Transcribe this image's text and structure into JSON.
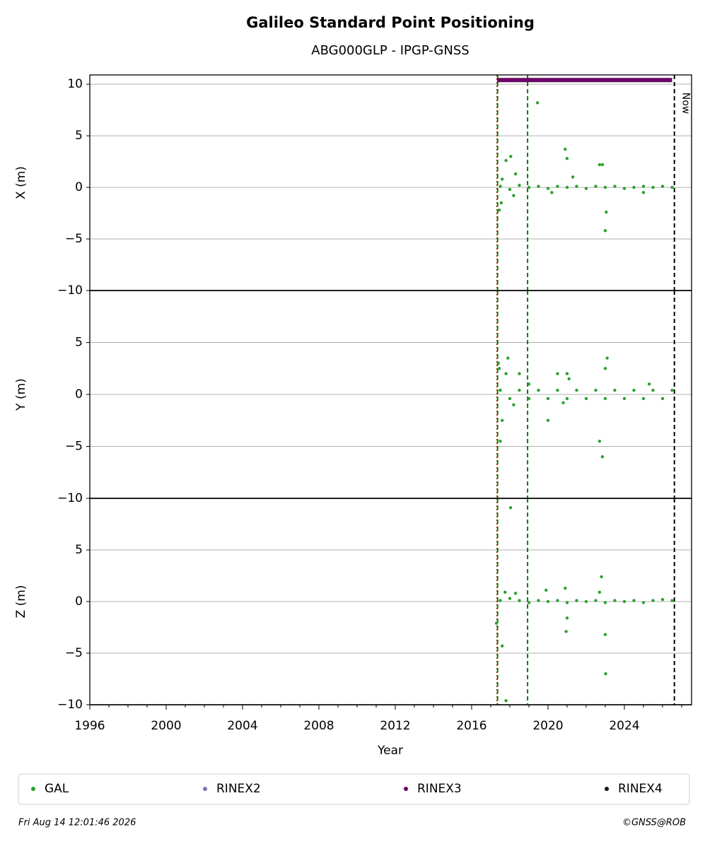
{
  "title": "Galileo Standard Point Positioning",
  "subtitle": "ABG000GLP - IPGP-GNSS",
  "x_axis": {
    "label": "Year",
    "xlim": [
      1996,
      2027.52
    ],
    "xticks": [
      1996,
      2000,
      2004,
      2008,
      2012,
      2016,
      2020,
      2024
    ],
    "minor_ticks": [
      1997,
      1998,
      1999,
      2001,
      2002,
      2003,
      2005,
      2006,
      2007,
      2009,
      2010,
      2011,
      2013,
      2014,
      2015,
      2017,
      2018,
      2019,
      2021,
      2022,
      2023,
      2025,
      2026,
      2027
    ]
  },
  "vlines": [
    {
      "x": 2017.33,
      "color": "#d62728",
      "style": "dotted"
    },
    {
      "x": 2017.36,
      "color": "#008000",
      "style": "dashed"
    },
    {
      "x": 2018.93,
      "color": "#008000",
      "style": "dashed"
    },
    {
      "x": 2026.62,
      "color": "#000000",
      "style": "dashed",
      "label": "Now"
    }
  ],
  "legend": [
    {
      "name": "GAL",
      "color": "#2ca02c"
    },
    {
      "name": "RINEX2",
      "color": "#8172b3"
    },
    {
      "name": "RINEX3",
      "color": "#6a0066"
    },
    {
      "name": "RINEX4",
      "color": "#1a0a1a"
    }
  ],
  "chart_data": [
    {
      "type": "scatter",
      "ylabel": "X (m)",
      "ylim": [
        -10,
        10.9
      ],
      "grid": true,
      "yticks": [
        {
          "value": -10,
          "label": "−10"
        },
        {
          "value": -5,
          "label": "−5"
        },
        0,
        5,
        10
      ],
      "series": [
        {
          "color": "#2ca02c",
          "x": [
            2017.5,
            2018,
            2018.5,
            2019,
            2019.5,
            2020,
            2020.5,
            2021,
            2021.5,
            2022,
            2022.5,
            2023,
            2023.5,
            2024,
            2024.5,
            2025,
            2025.5,
            2026,
            2026.5,
            2017.45,
            2017.55,
            2017.8,
            2018.05,
            2018.3,
            2019.45,
            2020.9,
            2021.0,
            2020.2,
            2022.7,
            2022.85,
            2023.0,
            2023.05,
            2021.3,
            2025.0,
            2017.6,
            2018.2
          ],
          "values": [
            0.1,
            -0.2,
            0.2,
            0,
            0.1,
            -0.1,
            0.1,
            0,
            0.1,
            -0.1,
            0.1,
            0,
            0.1,
            -0.1,
            0,
            0.1,
            0,
            0.1,
            0,
            -2.2,
            -1.5,
            2.6,
            3.0,
            1.3,
            8.2,
            3.7,
            2.8,
            -0.5,
            2.2,
            2.2,
            -4.2,
            -2.4,
            1.0,
            -0.5,
            0.8,
            -0.8
          ]
        }
      ],
      "spans": [
        {
          "x": [
            2017.33,
            2026.5
          ],
          "y": 10.4,
          "color": "#6a0066"
        }
      ]
    },
    {
      "type": "scatter",
      "ylabel": "Y (m)",
      "ylim": [
        -10,
        10
      ],
      "grid": true,
      "yticks": [
        {
          "value": -10,
          "label": "−10"
        },
        {
          "value": -5,
          "label": "−5"
        },
        0,
        5
      ],
      "series": [
        {
          "color": "#2ca02c",
          "x": [
            2017.5,
            2018,
            2018.5,
            2019,
            2019.5,
            2020,
            2020.5,
            2021,
            2021.5,
            2022,
            2022.5,
            2023,
            2023.5,
            2024,
            2024.5,
            2025,
            2025.5,
            2026,
            2026.5,
            2017.4,
            2017.45,
            2017.6,
            2017.5,
            2017.9,
            2017.8,
            2018.2,
            2018.5,
            2019.0,
            2020.0,
            2020.5,
            2021.0,
            2021.1,
            2022.7,
            2022.85,
            2023.0,
            2023.1,
            2025.3,
            2020.8
          ],
          "values": [
            0.4,
            -0.4,
            0.4,
            -0.4,
            0.4,
            -0.4,
            0.4,
            -0.4,
            0.4,
            -0.4,
            0.4,
            -0.4,
            0.4,
            -0.4,
            0.4,
            -0.4,
            0.4,
            -0.4,
            0.4,
            3.0,
            2.5,
            -2.5,
            -4.5,
            3.5,
            2.0,
            -1.0,
            2.0,
            1.0,
            -2.5,
            2.0,
            2.0,
            1.5,
            -4.5,
            -6.0,
            2.5,
            3.5,
            1.0,
            -0.8
          ]
        }
      ]
    },
    {
      "type": "scatter",
      "ylabel": "Z (m)",
      "ylim": [
        -10,
        10
      ],
      "grid": true,
      "yticks": [
        {
          "value": -10,
          "label": "−10"
        },
        {
          "value": -5,
          "label": "−5"
        },
        0,
        5
      ],
      "series": [
        {
          "color": "#2ca02c",
          "x": [
            2017.5,
            2018,
            2018.5,
            2019,
            2019.5,
            2020,
            2020.5,
            2021,
            2021.5,
            2022,
            2022.5,
            2023,
            2023.5,
            2024,
            2024.5,
            2025,
            2025.5,
            2026,
            2026.5,
            2017.3,
            2017.6,
            2017.8,
            2018.04,
            2017.75,
            2019.9,
            2020.9,
            2020.95,
            2021.0,
            2022.7,
            2022.8,
            2023.0,
            2023.02,
            2018.3
          ],
          "values": [
            0.1,
            0.3,
            0.1,
            -0.1,
            0.1,
            0,
            0.1,
            -0.1,
            0.1,
            0,
            0.1,
            -0.1,
            0.1,
            0,
            0.1,
            -0.1,
            0.1,
            0.2,
            0.1,
            -2.1,
            -4.3,
            -9.6,
            9.1,
            0.9,
            1.1,
            1.3,
            -2.9,
            -1.6,
            0.9,
            2.4,
            -3.2,
            -7.0,
            0.8
          ]
        }
      ]
    }
  ],
  "timestamp": "Fri Aug 14 12:01:46 2026",
  "credit": "©GNSS@ROB"
}
